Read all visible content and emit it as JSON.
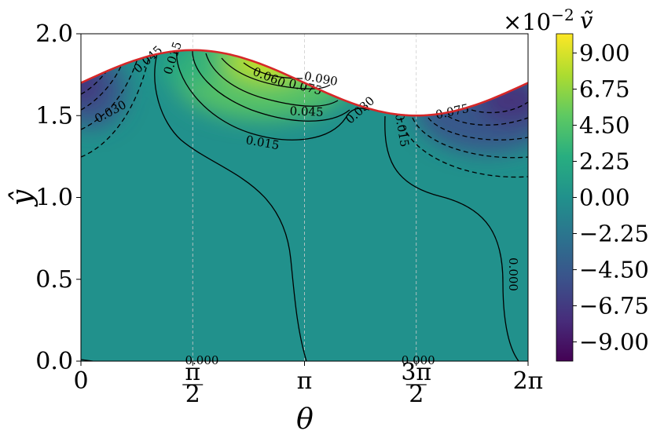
{
  "chart_data": {
    "type": "heatmap",
    "xlabel": "θ",
    "ylabel": "ŷ",
    "xlim": [
      0,
      6.2832
    ],
    "ylim": [
      0.0,
      2.0
    ],
    "x_ticks": [
      {
        "value": 0,
        "label": "0"
      },
      {
        "value": 1.5708,
        "num": "π",
        "den": "2"
      },
      {
        "value": 3.1416,
        "label": "π"
      },
      {
        "value": 4.7124,
        "num": "3π",
        "den": "2"
      },
      {
        "value": 6.2832,
        "label": "2π"
      }
    ],
    "y_ticks": [
      {
        "value": 0.0,
        "label": "0.0"
      },
      {
        "value": 0.5,
        "label": "0.5"
      },
      {
        "value": 1.0,
        "label": "1.0"
      },
      {
        "value": 1.5,
        "label": "1.5"
      },
      {
        "value": 2.0,
        "label": "2.0"
      }
    ],
    "boundary": {
      "description": "upper wall ŷ = 1.7 + 0.2·sin(θ)",
      "mean": 1.7,
      "amplitude": 0.2,
      "color": "#d62728"
    },
    "colorbar": {
      "title": "ṽ",
      "multiplier": "×10",
      "exponent": "−2",
      "ticks": [
        "9.00",
        "6.75",
        "4.50",
        "2.25",
        "0.00",
        "−2.25",
        "−4.50",
        "−6.75",
        "−9.00"
      ],
      "tick_values": [
        9.0,
        6.75,
        4.5,
        2.25,
        0.0,
        -2.25,
        -4.5,
        -6.75,
        -9.0
      ],
      "range": [
        -10.2,
        10.2
      ],
      "colormap": "viridis"
    },
    "contour_labels": [
      {
        "text": "0.045",
        "x": 0.95,
        "y": 1.84,
        "rotate": -42
      },
      {
        "text": "0.015",
        "x": 1.3,
        "y": 1.85,
        "rotate": -72
      },
      {
        "text": "0.030",
        "x": 0.42,
        "y": 1.52,
        "rotate": -28
      },
      {
        "text": "0.060",
        "x": 2.64,
        "y": 1.73,
        "rotate": 22
      },
      {
        "text": "0.075",
        "x": 3.15,
        "y": 1.67,
        "rotate": 14
      },
      {
        "text": "0.090",
        "x": 3.37,
        "y": 1.72,
        "rotate": 10
      },
      {
        "text": "0.045",
        "x": 3.17,
        "y": 1.52,
        "rotate": 2
      },
      {
        "text": "0.030",
        "x": 3.93,
        "y": 1.53,
        "rotate": -42
      },
      {
        "text": "0.015",
        "x": 2.55,
        "y": 1.33,
        "rotate": 10
      },
      {
        "text": "0.015",
        "x": 4.5,
        "y": 1.41,
        "rotate": 80
      },
      {
        "text": "0.075",
        "x": 5.22,
        "y": 1.52,
        "rotate": -12
      },
      {
        "text": "0.000",
        "x": 6.06,
        "y": 0.53,
        "rotate": 90
      },
      {
        "text": "0.000",
        "x": 1.7,
        "y": 0.0,
        "rotate": 0
      },
      {
        "text": "0.000",
        "x": 4.74,
        "y": 0.0,
        "rotate": 0
      }
    ],
    "grid": "vertical dashed lines at π/2, π, 3π/2"
  }
}
